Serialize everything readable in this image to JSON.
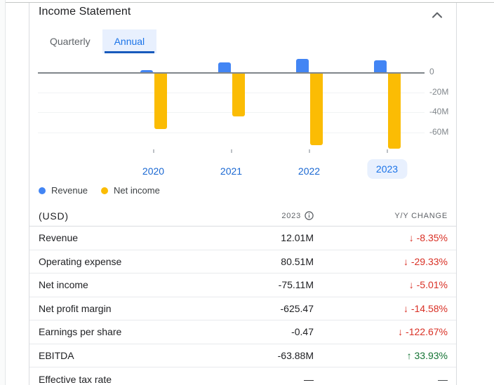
{
  "header": {
    "title": "Income Statement",
    "collapse_icon": "chevron-up"
  },
  "tabs": [
    {
      "label": "Quarterly",
      "active": false
    },
    {
      "label": "Annual",
      "active": true
    }
  ],
  "chart_data": {
    "type": "bar",
    "categories": [
      "2020",
      "2021",
      "2022",
      "2023"
    ],
    "series": [
      {
        "name": "Revenue",
        "color": "#4285f4",
        "values": [
          1.8,
          9.9,
          13.1,
          12.01
        ]
      },
      {
        "name": "Net income",
        "color": "#fbbc04",
        "values": [
          -55.2,
          -42.7,
          -71.5,
          -75.11
        ]
      }
    ],
    "unit": "millions USD",
    "y_ticks": [
      0,
      -20,
      -40,
      -60
    ],
    "y_tick_labels": [
      "0",
      "-20M",
      "-40M",
      "-60M"
    ],
    "ylim": [
      -80,
      15
    ],
    "grid": true,
    "legend_position": "bottom-left",
    "highlighted_category": "2023"
  },
  "legend": [
    {
      "label": "Revenue",
      "color": "#4285f4"
    },
    {
      "label": "Net income",
      "color": "#fbbc04"
    }
  ],
  "table": {
    "col_currency": "(USD)",
    "col_period": "2023",
    "col_change": "Y/Y CHANGE",
    "rows": [
      {
        "label": "Revenue",
        "value": "12.01M",
        "change": "-8.35%",
        "direction": "down"
      },
      {
        "label": "Operating expense",
        "value": "80.51M",
        "change": "-29.33%",
        "direction": "down"
      },
      {
        "label": "Net income",
        "value": "-75.11M",
        "change": "-5.01%",
        "direction": "down"
      },
      {
        "label": "Net profit margin",
        "value": "-625.47",
        "change": "-14.58%",
        "direction": "down"
      },
      {
        "label": "Earnings per share",
        "value": "-0.47",
        "change": "-122.67%",
        "direction": "down"
      },
      {
        "label": "EBITDA",
        "value": "-63.88M",
        "change": "33.93%",
        "direction": "up"
      },
      {
        "label": "Effective tax rate",
        "value": "—",
        "change": "—",
        "direction": "none"
      }
    ]
  },
  "colors": {
    "accent_blue": "#1a73e8",
    "tab_underline": "#185abc",
    "highlight_bg": "#e8f0fe",
    "revenue_bar": "#4285f4",
    "net_income_bar": "#fbbc04",
    "negative_red": "#d93025",
    "positive_green": "#137333"
  }
}
